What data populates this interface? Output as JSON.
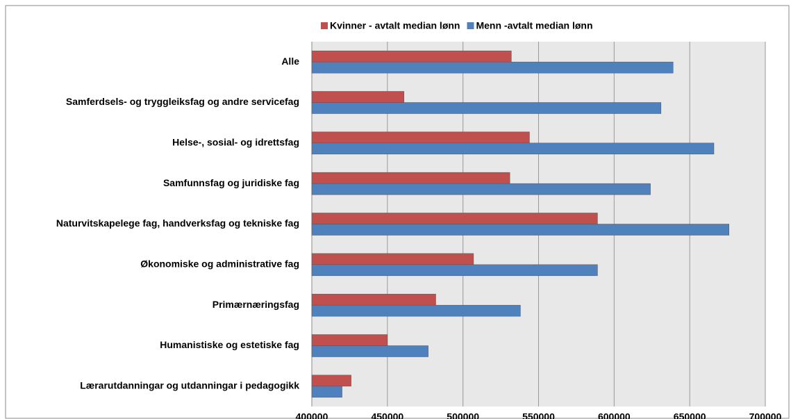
{
  "chart_data": {
    "type": "hbar",
    "categories": [
      "Alle",
      "Samferdsels- og tryggleiksfag og andre servicefag",
      "Helse-, sosial- og idrettsfag",
      "Samfunnsfag og juridiske fag",
      "Naturvitskapelege fag, handverksfag og tekniske fag",
      "Økonomiske og administrative fag",
      "Primærnæringsfag",
      "Humanistiske og estetiske fag",
      "Lærarutdanningar og utdanningar i pedagogikk"
    ],
    "series": [
      {
        "name": "Kvinner - avtalt median lønn",
        "color": "#c0504d",
        "values": [
          532000,
          461000,
          544000,
          531000,
          589000,
          507000,
          482000,
          450000,
          426000
        ]
      },
      {
        "name": "Menn -avtalt median lønn",
        "color": "#4f81bd",
        "values": [
          639000,
          631000,
          666000,
          624000,
          676000,
          589000,
          538000,
          477000,
          420000
        ]
      }
    ],
    "xlim": [
      400000,
      700000
    ],
    "xticks": [
      400000,
      450000,
      500000,
      550000,
      600000,
      650000,
      700000
    ],
    "grid": true
  }
}
